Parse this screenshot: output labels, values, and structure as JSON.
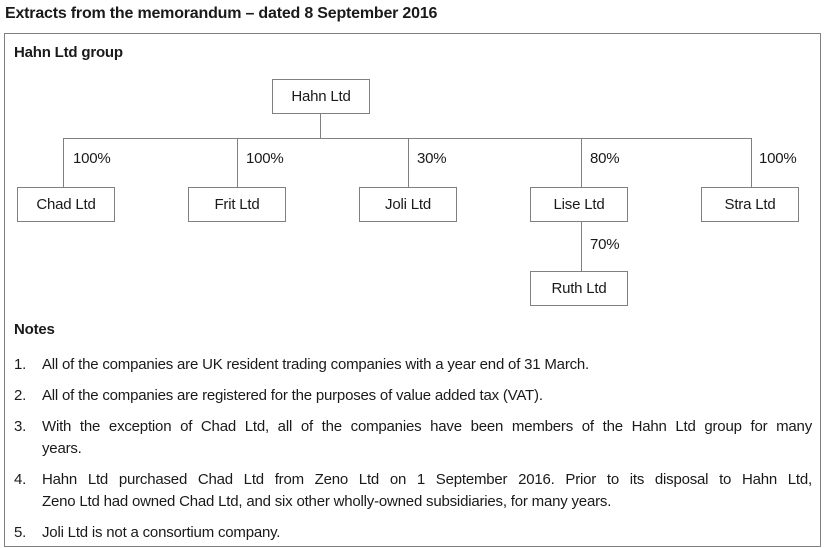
{
  "title": "Extracts from the memorandum – dated 8 September 2016",
  "colors": {
    "line": "#808080",
    "text": "#1a1a1a"
  },
  "diagram": {
    "heading": "Hahn Ltd group",
    "parent": "Hahn Ltd",
    "subsidiaries": [
      {
        "name": "Chad Ltd",
        "ownership": "100%"
      },
      {
        "name": "Frit Ltd",
        "ownership": "100%"
      },
      {
        "name": "Joli Ltd",
        "ownership": "30%"
      },
      {
        "name": "Lise Ltd",
        "ownership": "80%"
      },
      {
        "name": "Stra Ltd",
        "ownership": "100%"
      }
    ],
    "sub_subsidiary": {
      "parent": "Lise Ltd",
      "name": "Ruth Ltd",
      "ownership": "70%"
    }
  },
  "notes": {
    "heading": "Notes",
    "items": [
      {
        "number": "1.",
        "lines": [
          "All of the companies are UK resident trading companies with a year end of 31 March."
        ]
      },
      {
        "number": "2.",
        "lines": [
          "All of the companies are registered for the purposes of value added tax (VAT)."
        ]
      },
      {
        "number": "3.",
        "lines": [
          "With the exception of Chad Ltd, all of the companies have been members of the Hahn Ltd group for many",
          "years."
        ]
      },
      {
        "number": "4.",
        "lines": [
          "Hahn Ltd purchased Chad Ltd from Zeno Ltd on 1 September 2016. Prior to its disposal to Hahn Ltd,",
          "Zeno Ltd had owned Chad Ltd, and six other wholly-owned subsidiaries, for many years."
        ]
      },
      {
        "number": "5.",
        "lines": [
          "Joli Ltd is not a consortium company."
        ]
      }
    ]
  }
}
